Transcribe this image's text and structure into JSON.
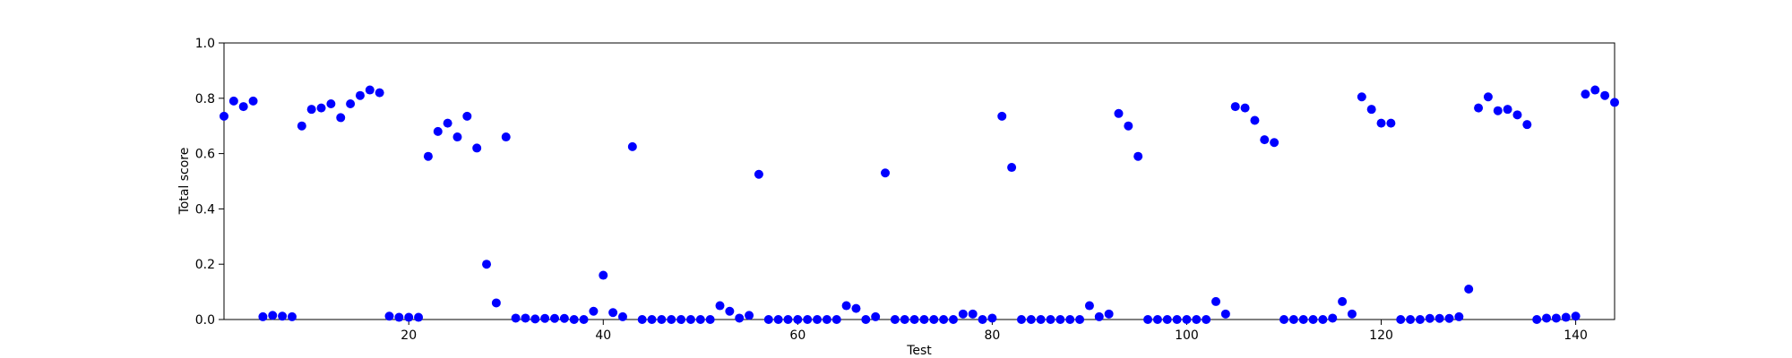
{
  "chart_data": {
    "type": "scatter",
    "title": "",
    "xlabel": "Test",
    "ylabel": "Total score",
    "xlim": [
      1,
      144
    ],
    "ylim": [
      0,
      1.0
    ],
    "xticks": [
      20,
      40,
      60,
      80,
      100,
      120,
      140
    ],
    "yticks": [
      0.0,
      0.2,
      0.4,
      0.6,
      0.8,
      1.0
    ],
    "xtick_labels": [
      "20",
      "40",
      "60",
      "80",
      "100",
      "120",
      "140"
    ],
    "ytick_labels": [
      "0.0",
      "0.2",
      "0.4",
      "0.6",
      "0.8",
      "1.0"
    ],
    "grid": false,
    "marker_color": "#0000ff",
    "series": [
      {
        "values": [
          [
            1,
            0.735
          ],
          [
            2,
            0.79
          ],
          [
            3,
            0.77
          ],
          [
            4,
            0.79
          ],
          [
            5,
            0.01
          ],
          [
            6,
            0.015
          ],
          [
            7,
            0.012
          ],
          [
            8,
            0.01
          ],
          [
            9,
            0.7
          ],
          [
            10,
            0.76
          ],
          [
            11,
            0.765
          ],
          [
            12,
            0.78
          ],
          [
            13,
            0.73
          ],
          [
            14,
            0.78
          ],
          [
            15,
            0.81
          ],
          [
            16,
            0.83
          ],
          [
            17,
            0.82
          ],
          [
            18,
            0.012
          ],
          [
            19,
            0.008
          ],
          [
            20,
            0.008
          ],
          [
            21,
            0.008
          ],
          [
            22,
            0.59
          ],
          [
            23,
            0.68
          ],
          [
            24,
            0.71
          ],
          [
            25,
            0.66
          ],
          [
            26,
            0.735
          ],
          [
            27,
            0.62
          ],
          [
            28,
            0.2
          ],
          [
            29,
            0.06
          ],
          [
            30,
            0.66
          ],
          [
            31,
            0.005
          ],
          [
            32,
            0.005
          ],
          [
            33,
            0.002
          ],
          [
            34,
            0.004
          ],
          [
            35,
            0.004
          ],
          [
            36,
            0.004
          ],
          [
            37,
            0.0
          ],
          [
            38,
            0.0
          ],
          [
            39,
            0.03
          ],
          [
            40,
            0.16
          ],
          [
            41,
            0.025
          ],
          [
            42,
            0.01
          ],
          [
            43,
            0.625
          ],
          [
            44,
            0.0
          ],
          [
            45,
            0.0
          ],
          [
            46,
            0.0
          ],
          [
            47,
            0.0
          ],
          [
            48,
            0.0
          ],
          [
            49,
            0.0
          ],
          [
            50,
            0.0
          ],
          [
            51,
            0.0
          ],
          [
            52,
            0.05
          ],
          [
            53,
            0.03
          ],
          [
            54,
            0.005
          ],
          [
            55,
            0.015
          ],
          [
            56,
            0.525
          ],
          [
            57,
            0.0
          ],
          [
            58,
            0.0
          ],
          [
            59,
            0.0
          ],
          [
            60,
            0.0
          ],
          [
            61,
            0.0
          ],
          [
            62,
            0.0
          ],
          [
            63,
            0.0
          ],
          [
            64,
            0.0
          ],
          [
            65,
            0.05
          ],
          [
            66,
            0.04
          ],
          [
            67,
            0.0
          ],
          [
            68,
            0.01
          ],
          [
            69,
            0.53
          ],
          [
            70,
            0.0
          ],
          [
            71,
            0.0
          ],
          [
            72,
            0.0
          ],
          [
            73,
            0.0
          ],
          [
            74,
            0.0
          ],
          [
            75,
            0.0
          ],
          [
            76,
            0.0
          ],
          [
            77,
            0.02
          ],
          [
            78,
            0.02
          ],
          [
            79,
            0.0
          ],
          [
            80,
            0.005
          ],
          [
            81,
            0.735
          ],
          [
            82,
            0.55
          ],
          [
            83,
            0.0
          ],
          [
            84,
            0.0
          ],
          [
            85,
            0.0
          ],
          [
            86,
            0.0
          ],
          [
            87,
            0.0
          ],
          [
            88,
            0.0
          ],
          [
            89,
            0.0
          ],
          [
            90,
            0.05
          ],
          [
            91,
            0.01
          ],
          [
            92,
            0.02
          ],
          [
            93,
            0.745
          ],
          [
            94,
            0.7
          ],
          [
            95,
            0.59
          ],
          [
            96,
            0.0
          ],
          [
            97,
            0.0
          ],
          [
            98,
            0.0
          ],
          [
            99,
            0.0
          ],
          [
            100,
            0.0
          ],
          [
            101,
            0.0
          ],
          [
            102,
            0.0
          ],
          [
            103,
            0.065
          ],
          [
            104,
            0.02
          ],
          [
            105,
            0.77
          ],
          [
            106,
            0.765
          ],
          [
            107,
            0.72
          ],
          [
            108,
            0.65
          ],
          [
            109,
            0.64
          ],
          [
            110,
            0.0
          ],
          [
            111,
            0.0
          ],
          [
            112,
            0.0
          ],
          [
            113,
            0.0
          ],
          [
            114,
            0.0
          ],
          [
            115,
            0.005
          ],
          [
            116,
            0.065
          ],
          [
            117,
            0.02
          ],
          [
            118,
            0.805
          ],
          [
            119,
            0.76
          ],
          [
            120,
            0.71
          ],
          [
            121,
            0.71
          ],
          [
            122,
            0.0
          ],
          [
            123,
            0.0
          ],
          [
            124,
            0.0
          ],
          [
            125,
            0.004
          ],
          [
            126,
            0.004
          ],
          [
            127,
            0.004
          ],
          [
            128,
            0.01
          ],
          [
            129,
            0.11
          ],
          [
            130,
            0.765
          ],
          [
            131,
            0.805
          ],
          [
            132,
            0.755
          ],
          [
            133,
            0.76
          ],
          [
            134,
            0.74
          ],
          [
            135,
            0.705
          ],
          [
            136,
            0.0
          ],
          [
            137,
            0.005
          ],
          [
            138,
            0.005
          ],
          [
            139,
            0.008
          ],
          [
            140,
            0.012
          ],
          [
            141,
            0.815
          ],
          [
            142,
            0.83
          ],
          [
            143,
            0.81
          ],
          [
            144,
            0.785
          ]
        ]
      }
    ]
  }
}
